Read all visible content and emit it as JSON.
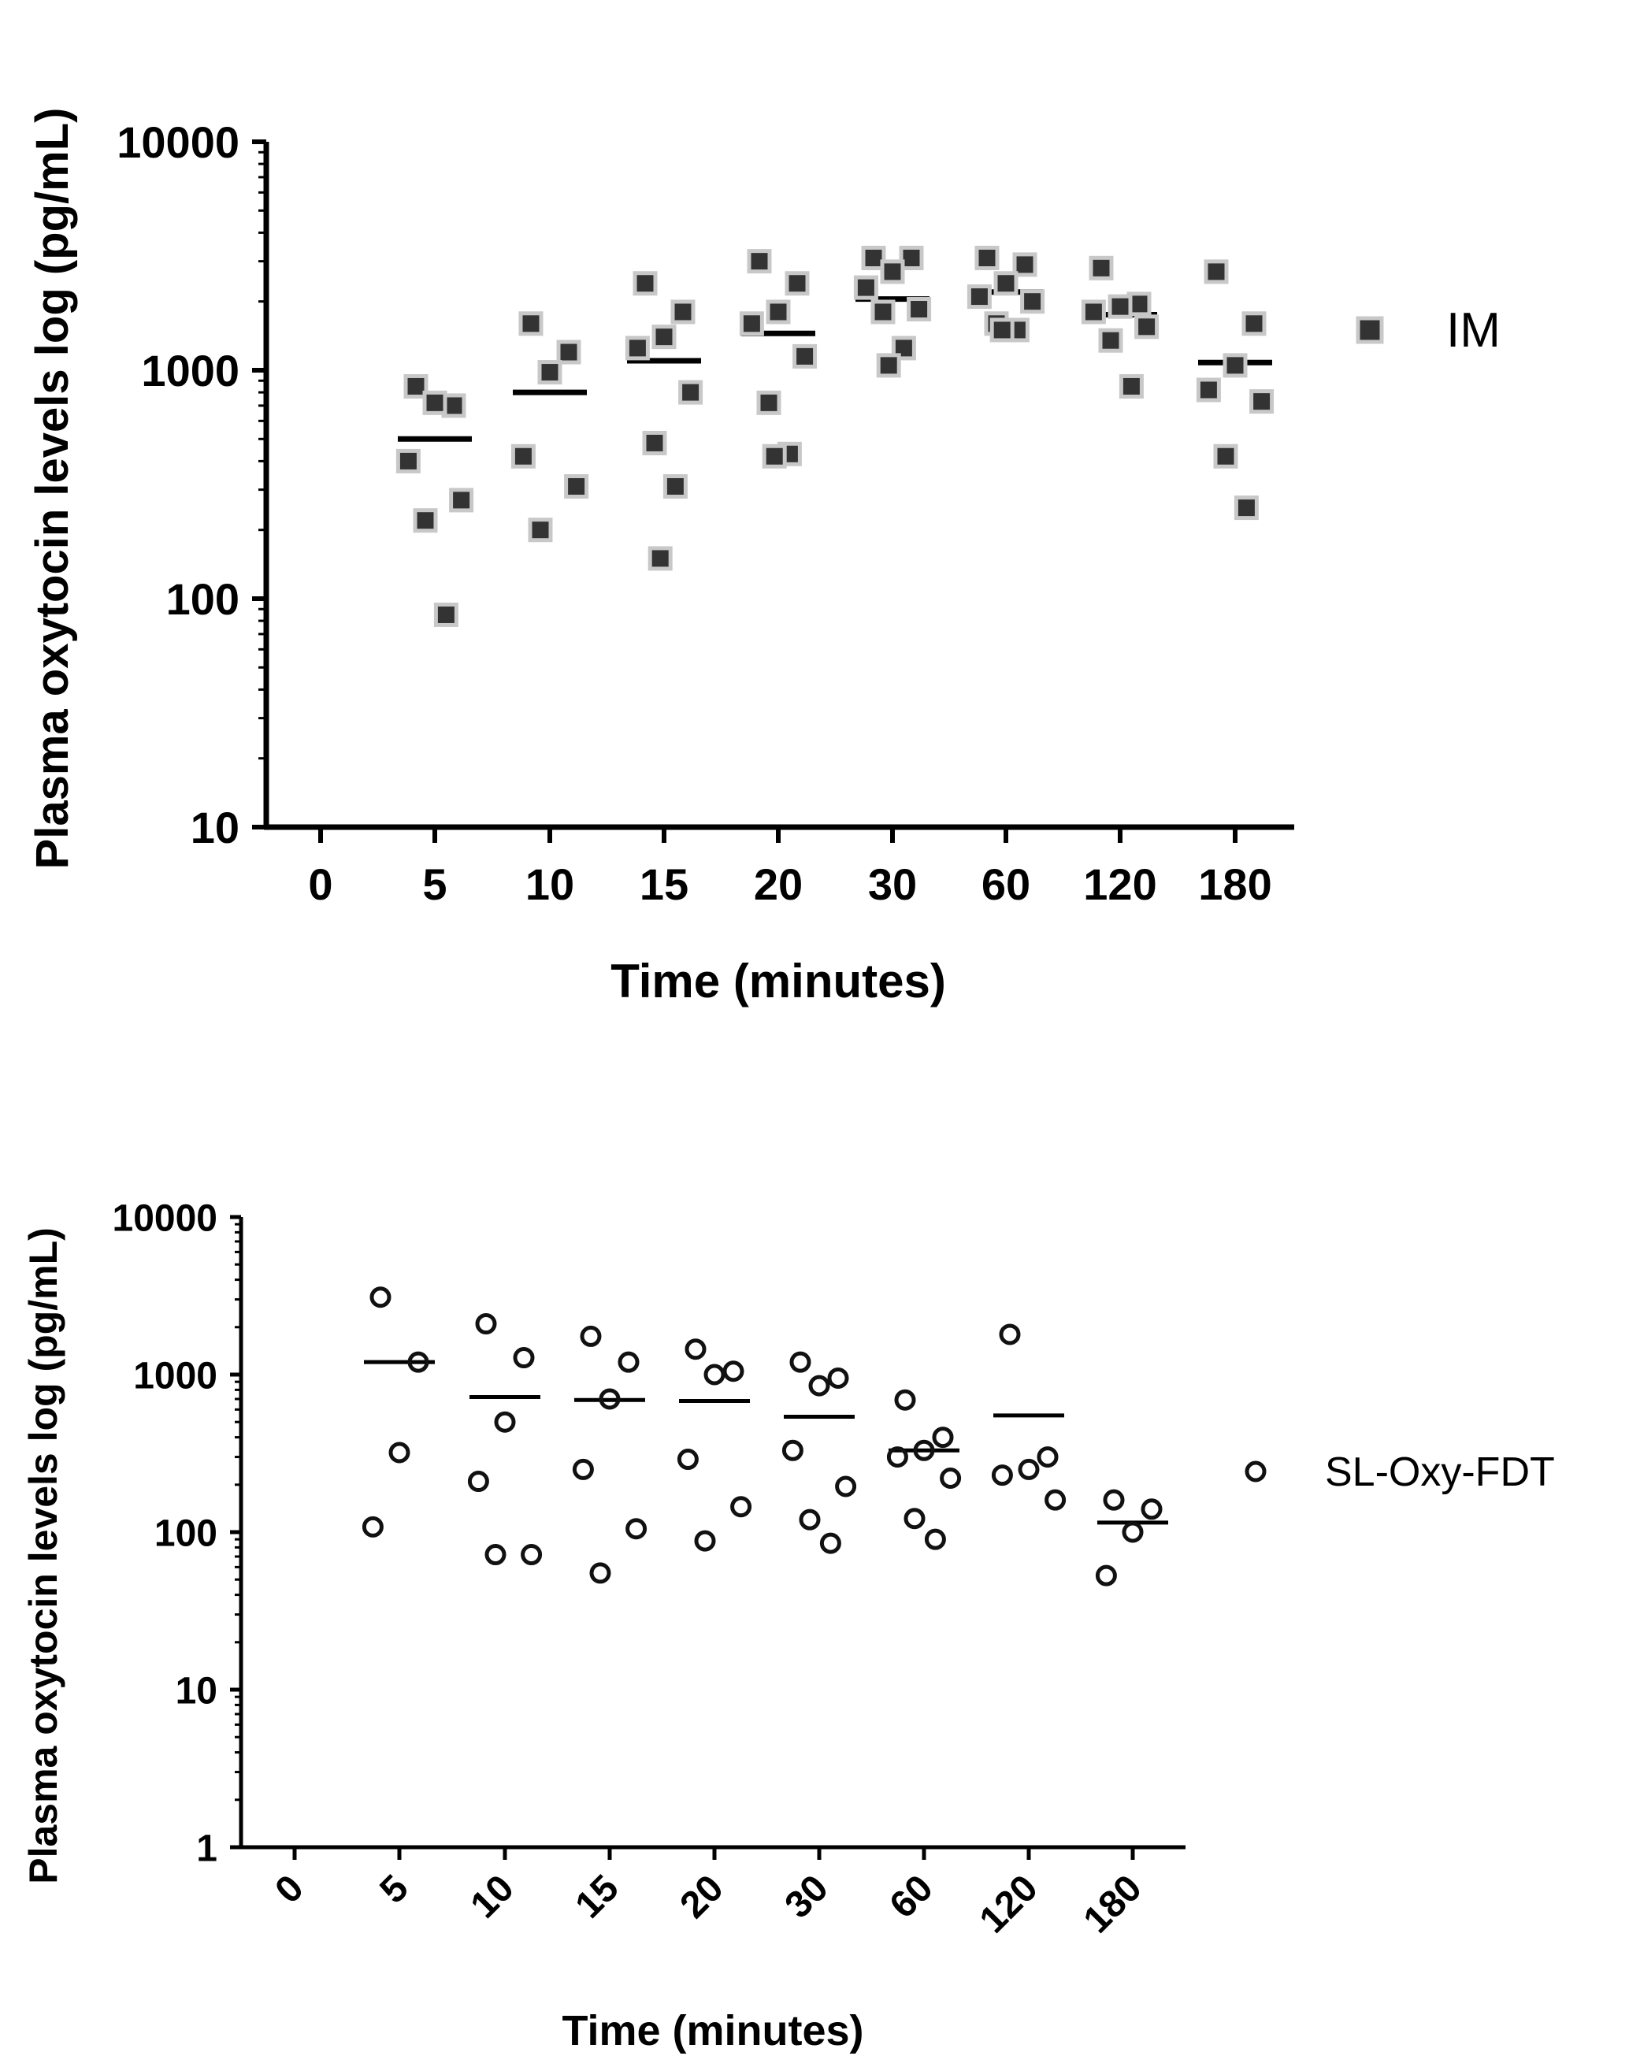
{
  "chart_data": [
    {
      "type": "scatter",
      "scale_y": "log",
      "ylim": [
        10,
        10000
      ],
      "categories": [
        "0",
        "5",
        "10",
        "15",
        "20",
        "30",
        "60",
        "120",
        "180"
      ],
      "xlabel": "Time (minutes)",
      "ylabel": "Plasma oxytocin levels log (pg/mL)",
      "y_ticks": [
        "10",
        "100",
        "1000",
        "10000"
      ],
      "legend": {
        "label": "IM",
        "marker": "filled-square",
        "position": "right"
      },
      "series": [
        {
          "name": "IM",
          "points": [
            {
              "x": "5",
              "y": [
                850,
                700,
                720,
                400,
                270,
                220,
                85
              ]
            },
            {
              "x": "10",
              "y": [
                1600,
                1200,
                980,
                420,
                310,
                200
              ]
            },
            {
              "x": "15",
              "y": [
                2400,
                1800,
                1400,
                1250,
                800,
                480,
                310,
                150
              ]
            },
            {
              "x": "20",
              "y": [
                3000,
                2400,
                1800,
                1600,
                1150,
                720,
                430,
                420
              ]
            },
            {
              "x": "30",
              "y": [
                3100,
                3100,
                2700,
                2300,
                1850,
                1800,
                1250,
                1050
              ]
            },
            {
              "x": "60",
              "y": [
                3100,
                2900,
                2400,
                2100,
                2000,
                1600,
                1500,
                1500
              ]
            },
            {
              "x": "120",
              "y": [
                2800,
                1950,
                1900,
                1800,
                1550,
                1350,
                850
              ]
            },
            {
              "x": "180",
              "y": [
                2700,
                1600,
                1050,
                820,
                730,
                420,
                250
              ]
            }
          ],
          "means": [
            {
              "x": "5",
              "y": 500
            },
            {
              "x": "10",
              "y": 800
            },
            {
              "x": "15",
              "y": 1100
            },
            {
              "x": "20",
              "y": 1450
            },
            {
              "x": "30",
              "y": 2050
            },
            {
              "x": "60",
              "y": 2200
            },
            {
              "x": "120",
              "y": 1750
            },
            {
              "x": "180",
              "y": 1080
            }
          ]
        }
      ]
    },
    {
      "type": "scatter",
      "scale_y": "log",
      "ylim": [
        1,
        10000
      ],
      "categories": [
        "0",
        "5",
        "10",
        "15",
        "20",
        "30",
        "60",
        "120",
        "180"
      ],
      "xlabel": "Time (minutes)",
      "ylabel": "Plasma oxytocin levels log (pg/mL)",
      "y_ticks": [
        "1",
        "10",
        "100",
        "1000",
        "10000"
      ],
      "legend": {
        "label": "SL-Oxy-FDT",
        "marker": "open-circle",
        "position": "right"
      },
      "series": [
        {
          "name": "SL-Oxy-FDT",
          "points": [
            {
              "x": "5",
              "y": [
                3100,
                1200,
                320,
                108
              ]
            },
            {
              "x": "10",
              "y": [
                2100,
                1280,
                500,
                210,
                72,
                72
              ]
            },
            {
              "x": "15",
              "y": [
                1750,
                1200,
                700,
                250,
                105,
                55
              ]
            },
            {
              "x": "20",
              "y": [
                1450,
                1050,
                1000,
                290,
                145,
                88
              ]
            },
            {
              "x": "30",
              "y": [
                1200,
                950,
                850,
                330,
                195,
                120,
                85
              ]
            },
            {
              "x": "60",
              "y": [
                690,
                400,
                330,
                300,
                220,
                122,
                90
              ]
            },
            {
              "x": "120",
              "y": [
                1800,
                300,
                250,
                230,
                160
              ]
            },
            {
              "x": "180",
              "y": [
                160,
                140,
                100,
                53
              ]
            }
          ],
          "means": [
            {
              "x": "5",
              "y": 1200
            },
            {
              "x": "10",
              "y": 720
            },
            {
              "x": "15",
              "y": 690
            },
            {
              "x": "20",
              "y": 680
            },
            {
              "x": "30",
              "y": 540
            },
            {
              "x": "60",
              "y": 330
            },
            {
              "x": "120",
              "y": 550
            },
            {
              "x": "180",
              "y": 115
            }
          ]
        }
      ]
    }
  ],
  "colors": {
    "im_marker_fill": "#333333",
    "im_marker_halo": "#c8c8c8",
    "sl_marker_stroke": "#111111",
    "axis": "#000000"
  }
}
